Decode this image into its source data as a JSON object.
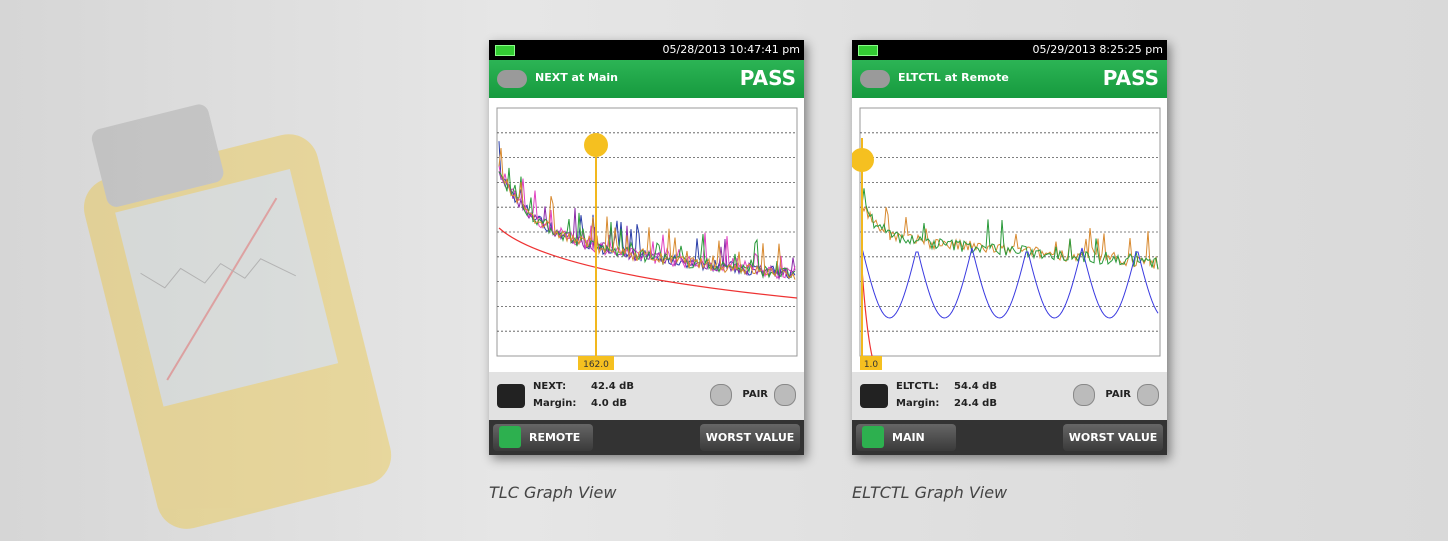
{
  "screens": [
    {
      "time": "05/28/2013 10:47:41 pm",
      "title": "NEXT at Main",
      "status": "PASS",
      "cursor": "162.0",
      "result_label": "NEXT:",
      "result_value": "42.4 dB",
      "margin_label": "Margin:",
      "margin_value": "4.0 dB",
      "pair": "PAIR",
      "left_button": "REMOTE",
      "right_button": "WORST VALUE",
      "caption": "TLC Graph View"
    },
    {
      "time": "05/29/2013 8:25:25 pm",
      "title": "ELTCTL at Remote",
      "status": "PASS",
      "cursor": "1.0",
      "result_label": "ELTCTL:",
      "result_value": "54.4 dB",
      "margin_label": "Margin:",
      "margin_value": "24.4 dB",
      "pair": "PAIR",
      "left_button": "MAIN",
      "right_button": "WORST VALUE",
      "caption": "ELTCTL Graph View"
    }
  ]
}
